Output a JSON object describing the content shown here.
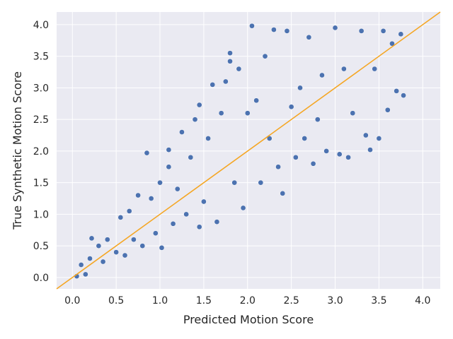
{
  "chart_data": {
    "type": "scatter",
    "xlabel": "Predicted Motion Score",
    "ylabel": "True Synthetic Motion Score",
    "xlim": [
      -0.18,
      4.2
    ],
    "ylim": [
      -0.18,
      4.2
    ],
    "x_ticks": [
      0.0,
      0.5,
      1.0,
      1.5,
      2.0,
      2.5,
      3.0,
      3.5,
      4.0
    ],
    "y_ticks": [
      0.0,
      0.5,
      1.0,
      1.5,
      2.0,
      2.5,
      3.0,
      3.5,
      4.0
    ],
    "x_tick_labels": [
      "0.0",
      "0.5",
      "1.0",
      "1.5",
      "2.0",
      "2.5",
      "3.0",
      "3.5",
      "4.0"
    ],
    "y_tick_labels": [
      "0.0",
      "0.5",
      "1.0",
      "1.5",
      "2.0",
      "2.5",
      "3.0",
      "3.5",
      "4.0"
    ],
    "grid": true,
    "background_color": "#eaeaf2",
    "grid_color": "#ffffff",
    "point_color": "#4c72b0",
    "point_edge_color": "#ffffff",
    "reference_line": {
      "kind": "identity y = x",
      "color": "#f5a623"
    },
    "series": [
      {
        "points": [
          [
            0.05,
            0.02
          ],
          [
            0.1,
            0.2
          ],
          [
            0.15,
            0.05
          ],
          [
            0.2,
            0.3
          ],
          [
            0.22,
            0.62
          ],
          [
            0.3,
            0.5
          ],
          [
            0.35,
            0.25
          ],
          [
            0.4,
            0.6
          ],
          [
            0.5,
            0.4
          ],
          [
            0.55,
            0.95
          ],
          [
            0.6,
            0.35
          ],
          [
            0.65,
            1.05
          ],
          [
            0.7,
            0.6
          ],
          [
            0.75,
            1.3
          ],
          [
            0.8,
            0.5
          ],
          [
            0.85,
            1.97
          ],
          [
            0.9,
            1.25
          ],
          [
            0.95,
            0.7
          ],
          [
            1.0,
            1.5
          ],
          [
            1.02,
            0.47
          ],
          [
            1.1,
            1.75
          ],
          [
            1.1,
            2.02
          ],
          [
            1.15,
            0.85
          ],
          [
            1.2,
            1.4
          ],
          [
            1.25,
            2.3
          ],
          [
            1.3,
            1.0
          ],
          [
            1.35,
            1.9
          ],
          [
            1.4,
            2.5
          ],
          [
            1.45,
            2.73
          ],
          [
            1.45,
            0.8
          ],
          [
            1.5,
            1.2
          ],
          [
            1.55,
            2.2
          ],
          [
            1.6,
            3.05
          ],
          [
            1.65,
            0.88
          ],
          [
            1.7,
            2.6
          ],
          [
            1.75,
            3.1
          ],
          [
            1.8,
            3.55
          ],
          [
            1.8,
            3.42
          ],
          [
            1.85,
            1.5
          ],
          [
            1.9,
            3.3
          ],
          [
            1.95,
            1.1
          ],
          [
            2.0,
            2.6
          ],
          [
            2.05,
            3.98
          ],
          [
            2.1,
            2.8
          ],
          [
            2.15,
            1.5
          ],
          [
            2.2,
            3.5
          ],
          [
            2.25,
            2.2
          ],
          [
            2.3,
            3.92
          ],
          [
            2.35,
            1.75
          ],
          [
            2.4,
            1.33
          ],
          [
            2.45,
            3.9
          ],
          [
            2.5,
            2.7
          ],
          [
            2.55,
            1.9
          ],
          [
            2.6,
            3.0
          ],
          [
            2.65,
            2.2
          ],
          [
            2.7,
            3.8
          ],
          [
            2.75,
            1.8
          ],
          [
            2.8,
            2.5
          ],
          [
            2.85,
            3.2
          ],
          [
            2.9,
            2.0
          ],
          [
            3.0,
            3.95
          ],
          [
            3.05,
            1.95
          ],
          [
            3.1,
            3.3
          ],
          [
            3.15,
            1.9
          ],
          [
            3.2,
            2.6
          ],
          [
            3.3,
            3.9
          ],
          [
            3.35,
            2.25
          ],
          [
            3.4,
            2.02
          ],
          [
            3.45,
            3.3
          ],
          [
            3.5,
            2.2
          ],
          [
            3.55,
            3.9
          ],
          [
            3.6,
            2.65
          ],
          [
            3.65,
            3.7
          ],
          [
            3.7,
            2.95
          ],
          [
            3.75,
            3.85
          ],
          [
            3.78,
            2.88
          ]
        ]
      }
    ]
  }
}
